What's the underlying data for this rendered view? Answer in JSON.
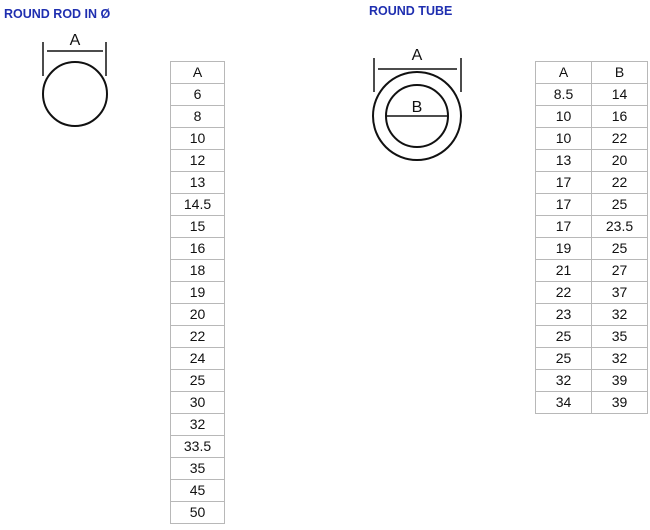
{
  "rod": {
    "title": "ROUND ROD IN Ø",
    "diagram_label": "A",
    "header": "A",
    "values": [
      "6",
      "8",
      "10",
      "12",
      "13",
      "14.5",
      "15",
      "16",
      "18",
      "19",
      "20",
      "22",
      "24",
      "25",
      "30",
      "32",
      "33.5",
      "35",
      "45",
      "50"
    ]
  },
  "tube": {
    "title": "ROUND TUBE",
    "diagram_label_outer": "A",
    "diagram_label_inner": "B",
    "headers": [
      "A",
      "B"
    ],
    "rows": [
      [
        "8.5",
        "14"
      ],
      [
        "10",
        "16"
      ],
      [
        "10",
        "22"
      ],
      [
        "13",
        "20"
      ],
      [
        "17",
        "22"
      ],
      [
        "17",
        "25"
      ],
      [
        "17",
        "23.5"
      ],
      [
        "19",
        "25"
      ],
      [
        "21",
        "27"
      ],
      [
        "22",
        "37"
      ],
      [
        "23",
        "32"
      ],
      [
        "25",
        "35"
      ],
      [
        "25",
        "32"
      ],
      [
        "32",
        "39"
      ],
      [
        "34",
        "39"
      ]
    ]
  },
  "colors": {
    "title": "#1f2fb0"
  }
}
